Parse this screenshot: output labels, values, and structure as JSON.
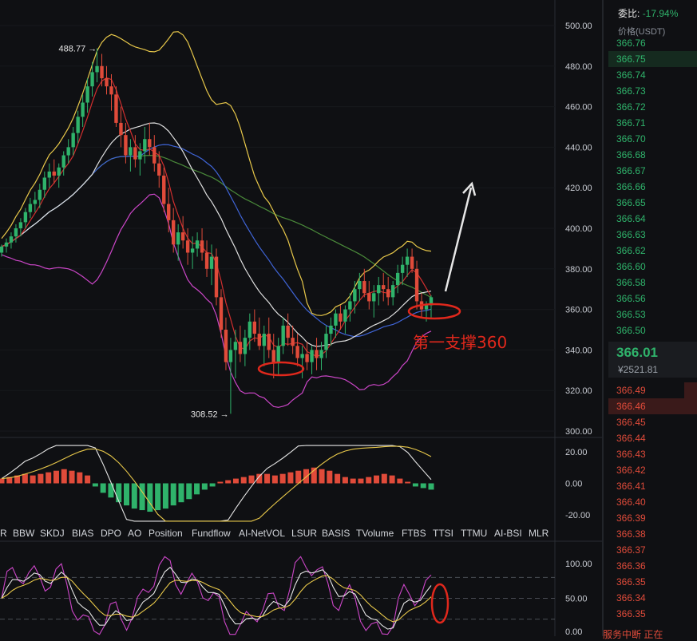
{
  "chart_data": {
    "type": "candlestick",
    "title": "",
    "price_axis": {
      "ticks": [
        "500.00",
        "480.00",
        "460.00",
        "440.00",
        "420.00",
        "400.00",
        "380.00",
        "360.00",
        "340.00",
        "320.00",
        "300.00"
      ],
      "ylim": [
        298,
        506
      ]
    },
    "high_marker": "488.77",
    "low_marker": "308.52",
    "annotation_text": "第一支撑360",
    "candles": [
      [
        388,
        392,
        386,
        391
      ],
      [
        391,
        395,
        388,
        393
      ],
      [
        393,
        398,
        390,
        396
      ],
      [
        396,
        402,
        393,
        400
      ],
      [
        400,
        405,
        396,
        403
      ],
      [
        403,
        410,
        400,
        408
      ],
      [
        408,
        415,
        405,
        412
      ],
      [
        412,
        418,
        408,
        414
      ],
      [
        414,
        422,
        410,
        419
      ],
      [
        419,
        428,
        415,
        425
      ],
      [
        425,
        432,
        420,
        428
      ],
      [
        428,
        434,
        422,
        426
      ],
      [
        426,
        432,
        420,
        430
      ],
      [
        430,
        438,
        426,
        436
      ],
      [
        436,
        444,
        432,
        440
      ],
      [
        440,
        450,
        436,
        447
      ],
      [
        447,
        458,
        442,
        455
      ],
      [
        455,
        466,
        450,
        462
      ],
      [
        462,
        474,
        457,
        470
      ],
      [
        470,
        482,
        465,
        477
      ],
      [
        477,
        488.77,
        472,
        480
      ],
      [
        480,
        486,
        470,
        474
      ],
      [
        474,
        480,
        466,
        470
      ],
      [
        470,
        476,
        458,
        466
      ],
      [
        466,
        470,
        450,
        452
      ],
      [
        452,
        460,
        440,
        446
      ],
      [
        446,
        452,
        432,
        436
      ],
      [
        436,
        444,
        428,
        440
      ],
      [
        440,
        446,
        430,
        434
      ],
      [
        434,
        442,
        426,
        438
      ],
      [
        438,
        450,
        432,
        444
      ],
      [
        444,
        452,
        436,
        440
      ],
      [
        440,
        446,
        428,
        432
      ],
      [
        432,
        438,
        420,
        426
      ],
      [
        426,
        430,
        408,
        412
      ],
      [
        412,
        420,
        398,
        404
      ],
      [
        404,
        410,
        388,
        392
      ],
      [
        392,
        402,
        384,
        398
      ],
      [
        398,
        406,
        390,
        394
      ],
      [
        394,
        400,
        382,
        388
      ],
      [
        388,
        396,
        380,
        390
      ],
      [
        390,
        398,
        386,
        394
      ],
      [
        394,
        400,
        384,
        388
      ],
      [
        388,
        394,
        376,
        380
      ],
      [
        380,
        392,
        372,
        386
      ],
      [
        386,
        390,
        362,
        366
      ],
      [
        366,
        370,
        346,
        350
      ],
      [
        350,
        356,
        330,
        334
      ],
      [
        334,
        346,
        308.52,
        340
      ],
      [
        340,
        350,
        326,
        344
      ],
      [
        344,
        352,
        334,
        338
      ],
      [
        338,
        350,
        332,
        346
      ],
      [
        346,
        358,
        340,
        354
      ],
      [
        354,
        360,
        344,
        348
      ],
      [
        348,
        356,
        340,
        342
      ],
      [
        342,
        352,
        332,
        348
      ],
      [
        348,
        356,
        336,
        340
      ],
      [
        340,
        348,
        326,
        334
      ],
      [
        334,
        346,
        328,
        342
      ],
      [
        342,
        356,
        338,
        352
      ],
      [
        352,
        358,
        342,
        346
      ],
      [
        346,
        352,
        338,
        342
      ],
      [
        342,
        348,
        332,
        336
      ],
      [
        336,
        342,
        326,
        338
      ],
      [
        338,
        344,
        330,
        334
      ],
      [
        334,
        342,
        328,
        340
      ],
      [
        340,
        346,
        330,
        336
      ],
      [
        336,
        344,
        330,
        340
      ],
      [
        340,
        352,
        336,
        348
      ],
      [
        348,
        356,
        342,
        352
      ],
      [
        352,
        360,
        346,
        358
      ],
      [
        358,
        362,
        350,
        354
      ],
      [
        354,
        362,
        348,
        360
      ],
      [
        360,
        368,
        354,
        364
      ],
      [
        364,
        374,
        358,
        370
      ],
      [
        370,
        378,
        364,
        374
      ],
      [
        374,
        380,
        366,
        368
      ],
      [
        368,
        374,
        360,
        364
      ],
      [
        364,
        372,
        356,
        368
      ],
      [
        368,
        376,
        362,
        372
      ],
      [
        372,
        378,
        364,
        370
      ],
      [
        370,
        376,
        362,
        366
      ],
      [
        366,
        374,
        362,
        372
      ],
      [
        372,
        382,
        368,
        378
      ],
      [
        378,
        386,
        372,
        382
      ],
      [
        382,
        390,
        376,
        386
      ],
      [
        386,
        390,
        378,
        380
      ],
      [
        380,
        384,
        360,
        364
      ],
      [
        364,
        368,
        356,
        360
      ],
      [
        360,
        364,
        354,
        362
      ],
      [
        362,
        367,
        356,
        366
      ]
    ],
    "series": [
      {
        "name": "",
        "color": "#e8c84a",
        "values": []
      },
      {
        "name": "",
        "color": "#cc46c8",
        "values": []
      },
      {
        "name": "",
        "color": "#e0e0e0",
        "values": []
      },
      {
        "name": "",
        "color": "#3f64d6",
        "values": []
      },
      {
        "name": "",
        "color": "#d32f2f",
        "values": []
      },
      {
        "name": "",
        "color": "#4a8a3a",
        "values": []
      }
    ],
    "macd_axis": {
      "ticks": [
        "20.00",
        "0.00",
        "-20.00"
      ],
      "ylim": [
        -25,
        25
      ]
    },
    "macd_hist": [
      3,
      4,
      5,
      6,
      5,
      6,
      7,
      8,
      9,
      8,
      7,
      5,
      -2,
      -6,
      -9,
      -12,
      -14,
      -16,
      -17,
      -18,
      -17,
      -16,
      -14,
      -12,
      -10,
      -7,
      -4,
      -2,
      1,
      2,
      3,
      4,
      5,
      6,
      6,
      5,
      6,
      7,
      8,
      9,
      10,
      9,
      8,
      6,
      4,
      3,
      3,
      4,
      5,
      6,
      5,
      3,
      1,
      -2,
      -3,
      -4
    ],
    "osc_axis": {
      "ticks": [
        "100.00",
        "50.00",
        "0.00"
      ],
      "ylim": [
        -5,
        120
      ]
    },
    "indicators": [
      "R",
      "BBW",
      "SKDJ",
      "BIAS",
      "DPO",
      "AO",
      "Position",
      "Fundflow",
      "AI-NetVOL",
      "LSUR",
      "BASIS",
      "TVolume",
      "FTBS",
      "TTSI",
      "TTMU",
      "AI-BSI",
      "MLR"
    ],
    "colors": {
      "up": "#2fb36b",
      "down": "#e04b3a",
      "annotation": "#e0281c",
      "arrow": "#e6e6e6"
    }
  },
  "orderbook": {
    "ratio_label": "委比:",
    "ratio_value": "-17.94%",
    "column_header": "价格(USDT)",
    "asks": [
      "366.76",
      "366.75",
      "366.74",
      "366.73",
      "366.72",
      "366.71",
      "366.70",
      "366.68",
      "366.67",
      "366.66",
      "366.65",
      "366.64",
      "366.63",
      "366.62",
      "366.60",
      "366.58",
      "366.56",
      "366.53",
      "366.50"
    ],
    "last_price": "366.01",
    "last_price_cny": "¥2521.81",
    "bids": [
      "366.49",
      "366.46",
      "366.45",
      "366.44",
      "366.43",
      "366.42",
      "366.41",
      "366.40",
      "366.39",
      "366.38",
      "366.37",
      "366.36",
      "366.35",
      "366.34",
      "366.35"
    ],
    "footer": "服务中断   正在"
  }
}
